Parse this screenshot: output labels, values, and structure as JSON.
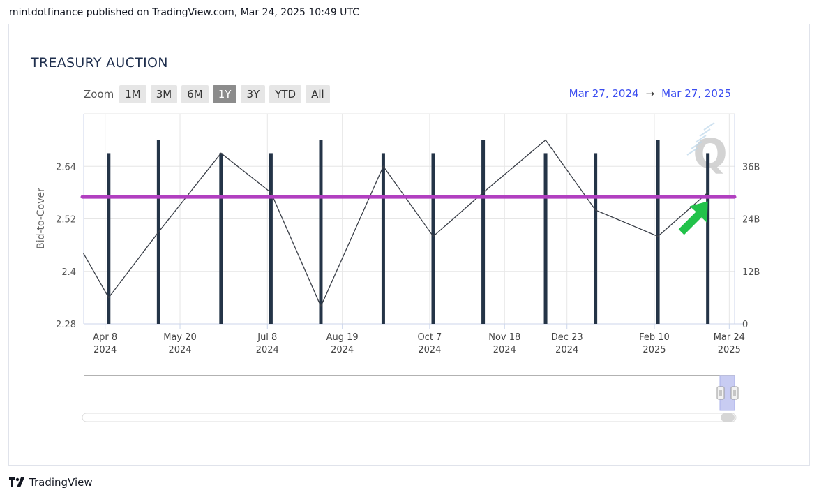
{
  "header": {
    "published": "mintdotfinance published on TradingView.com, Mar 24, 2025 10:49 UTC"
  },
  "footer": {
    "brand": "TradingView"
  },
  "colors": {
    "bars": "#243447",
    "line": "#3a3f48",
    "threshold": "#b13fc0",
    "arrow": "#22c24a",
    "range_text": "#3a4cf0"
  },
  "chart_data": {
    "type": "bar",
    "title": "TREASURY AUCTION",
    "zoom": {
      "label": "Zoom",
      "buttons": [
        "1M",
        "3M",
        "6M",
        "1Y",
        "3Y",
        "YTD",
        "All"
      ],
      "active": "1Y"
    },
    "range": {
      "from": "Mar 27, 2024",
      "arrow": "→",
      "to": "Mar 27, 2025"
    },
    "ylabel_left": "Bid-to-Cover",
    "y_left_ticks": [
      "2.64",
      "2.52",
      "2.4",
      "2.28"
    ],
    "y_left_range": [
      2.28,
      2.76
    ],
    "y_right_ticks": [
      "36B",
      "24B",
      "12B",
      "0"
    ],
    "y_right_range": [
      0,
      48
    ],
    "x_ticks": [
      {
        "date": "2024-04-08",
        "label1": "Apr 8",
        "label2": "2024"
      },
      {
        "date": "2024-05-20",
        "label1": "May 20",
        "label2": "2024"
      },
      {
        "date": "2024-07-08",
        "label1": "Jul 8",
        "label2": "2024"
      },
      {
        "date": "2024-08-19",
        "label1": "Aug 19",
        "label2": "2024"
      },
      {
        "date": "2024-10-07",
        "label1": "Oct 7",
        "label2": "2024"
      },
      {
        "date": "2024-11-18",
        "label1": "Nov 18",
        "label2": "2024"
      },
      {
        "date": "2024-12-23",
        "label1": "Dec 23",
        "label2": "2024"
      },
      {
        "date": "2025-02-10",
        "label1": "Feb 10",
        "label2": "2025"
      },
      {
        "date": "2025-03-24",
        "label1": "Mar 24",
        "label2": "2025"
      }
    ],
    "x_range": [
      "2024-03-27",
      "2025-03-27"
    ],
    "series": [
      {
        "type": "bar",
        "axis": "right",
        "x": [
          "2024-04-10",
          "2024-05-08",
          "2024-06-12",
          "2024-07-10",
          "2024-08-07",
          "2024-09-11",
          "2024-10-09",
          "2024-11-06",
          "2024-12-11",
          "2025-01-08",
          "2025-02-12",
          "2025-03-12"
        ],
        "values": [
          39,
          42,
          39,
          39,
          42,
          39,
          39,
          42,
          39,
          39,
          42,
          39
        ]
      },
      {
        "type": "line",
        "axis": "left",
        "x": [
          "2024-03-27",
          "2024-04-10",
          "2024-05-08",
          "2024-06-12",
          "2024-07-10",
          "2024-08-07",
          "2024-09-11",
          "2024-10-09",
          "2024-11-06",
          "2024-12-11",
          "2025-01-08",
          "2025-02-12",
          "2025-03-12"
        ],
        "values": [
          2.44,
          2.34,
          2.49,
          2.67,
          2.58,
          2.32,
          2.64,
          2.48,
          2.58,
          2.7,
          2.54,
          2.48,
          2.58
        ]
      }
    ],
    "threshold": {
      "axis": "left",
      "value": 2.57
    },
    "annotation": {
      "type": "arrow",
      "x": "2025-03-12",
      "y": 2.56
    },
    "watermark": "Q"
  }
}
